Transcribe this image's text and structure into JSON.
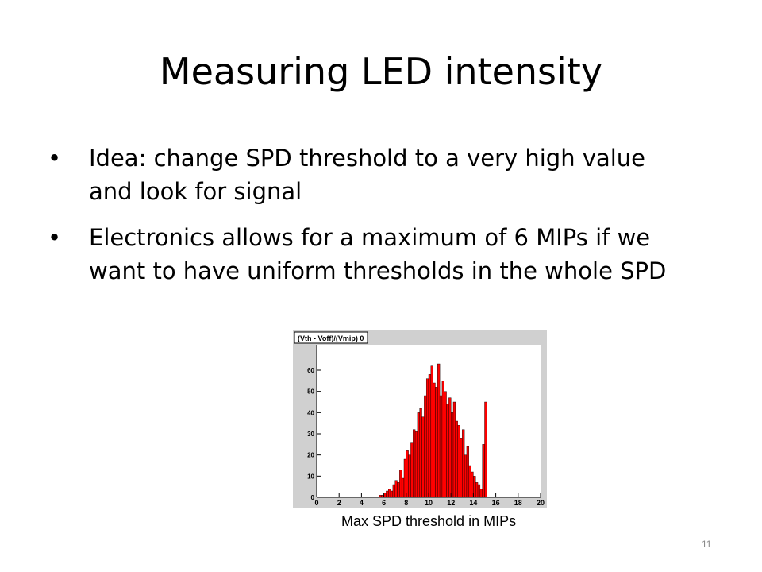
{
  "slide": {
    "title": "Measuring LED intensity",
    "bullets": [
      "Idea: change SPD threshold to a very high value and look for signal",
      "Electronics allows for a maximum of 6 MIPs if we want to have uniform thresholds in the whole SPD"
    ],
    "bullet_glyph": "•",
    "caption": "Max SPD threshold in MIPs",
    "page_number": "11"
  },
  "chart_data": {
    "type": "bar",
    "title": "(Vth - Voff)/(Vmip) 0",
    "xlabel": "",
    "ylabel": "",
    "xlim": [
      0,
      20
    ],
    "ylim": [
      0,
      72
    ],
    "x_ticks": [
      "0",
      "2",
      "4",
      "6",
      "8",
      "10",
      "12",
      "14",
      "16",
      "18",
      "20"
    ],
    "y_ticks": [
      "0",
      "10",
      "20",
      "30",
      "40",
      "50",
      "60"
    ],
    "bin_width": 0.2,
    "bin_starts": [
      5.4,
      5.6,
      5.8,
      6.0,
      6.2,
      6.4,
      6.6,
      6.8,
      7.0,
      7.2,
      7.4,
      7.6,
      7.8,
      8.0,
      8.2,
      8.4,
      8.6,
      8.8,
      9.0,
      9.2,
      9.4,
      9.6,
      9.8,
      10.0,
      10.2,
      10.4,
      10.6,
      10.8,
      11.0,
      11.2,
      11.4,
      11.6,
      11.8,
      12.0,
      12.2,
      12.4,
      12.6,
      12.8,
      13.0,
      13.2,
      13.4,
      13.6,
      13.8,
      14.0,
      14.2,
      14.4,
      14.6,
      14.8,
      15.0,
      15.2
    ],
    "values": [
      0,
      1,
      1,
      2,
      3,
      4,
      3,
      6,
      8,
      7,
      13,
      9,
      18,
      22,
      20,
      26,
      32,
      31,
      40,
      42,
      38,
      48,
      56,
      58,
      62,
      54,
      52,
      63,
      48,
      55,
      50,
      44,
      47,
      40,
      45,
      36,
      34,
      28,
      32,
      20,
      24,
      15,
      12,
      10,
      7,
      6,
      4,
      25,
      45,
      0
    ],
    "bar_color": "#ff0000",
    "background_color": "#d0d0d0",
    "frame_color": "#ffffff"
  }
}
